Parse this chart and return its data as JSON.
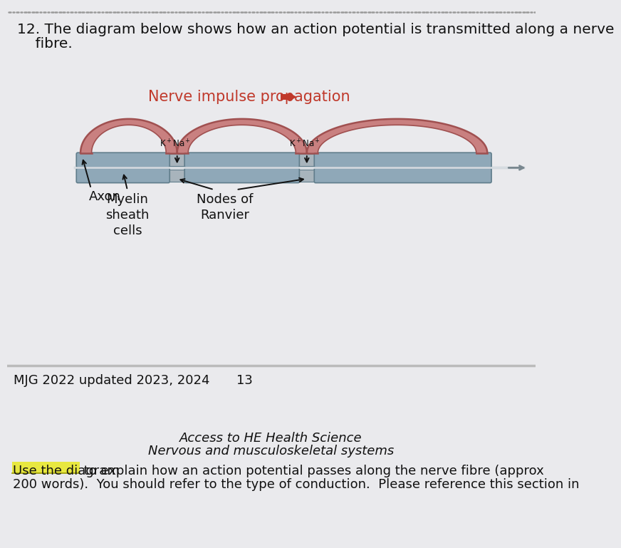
{
  "bg_color": "#eaeaed",
  "title_text_line1": "12. The diagram below shows how an action potential is transmitted along a nerve",
  "title_text_line2": "    fibre.",
  "title_fontsize": 14.5,
  "propagation_label": "Nerve impulse propagation",
  "propagation_color": "#c0392b",
  "propagation_fontsize": 15,
  "myelin_color": "#8fa8b8",
  "myelin_top_color": "#7a98aa",
  "myelin_edge_color": "#607d8b",
  "node_color": "#9aaab5",
  "arch_fill_color": "#c98080",
  "arch_edge_color": "#a05050",
  "axon_line_color": "#c5cdd4",
  "label_fontsize": 13,
  "label_color": "#111111",
  "footer_left": "MJG 2022 updated 2023, 2024",
  "footer_center": "13",
  "footer_fontsize": 13,
  "separator_color": "#bbbbbb",
  "he_fontsize": 13,
  "question_fontsize": 13,
  "highlight_color": "#e8e840",
  "arrow_color": "#111111"
}
